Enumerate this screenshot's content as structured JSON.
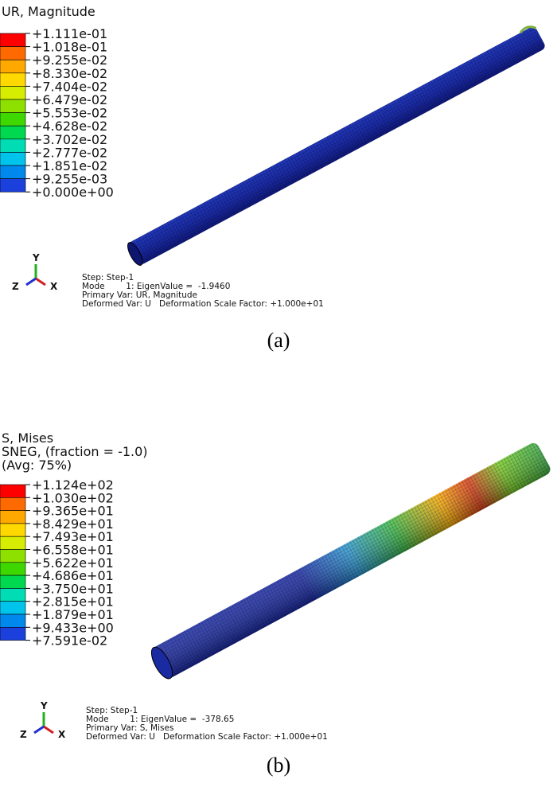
{
  "panels": [
    {
      "legend": {
        "title_lines": [
          "UR, Magnitude"
        ],
        "labels": [
          "+1.111e-01",
          "+1.018e-01",
          "+9.255e-02",
          "+8.330e-02",
          "+7.404e-02",
          "+6.479e-02",
          "+5.553e-02",
          "+4.628e-02",
          "+3.702e-02",
          "+2.777e-02",
          "+1.851e-02",
          "+9.255e-03",
          "+0.000e+00"
        ],
        "colors": [
          "#ff0000",
          "#ff6a00",
          "#ffa800",
          "#ffd800",
          "#d6ec00",
          "#8ee000",
          "#3ed800",
          "#00d850",
          "#00dcb4",
          "#00c4ec",
          "#0088ec",
          "#1c40dc"
        ]
      },
      "triad": {
        "y": "Y",
        "x": "X",
        "z": "Z"
      },
      "info": [
        "Step: Step-1",
        "Mode        1: EigenValue =  -1.9460",
        "Primary Var: UR, Magnitude",
        "Deformed Var: U   Deformation Scale Factor: +1.000e+01"
      ],
      "caption": "(a)"
    },
    {
      "legend": {
        "title_lines": [
          "S, Mises",
          "SNEG, (fraction = -1.0)",
          "(Avg: 75%)"
        ],
        "labels": [
          "+1.124e+02",
          "+1.030e+02",
          "+9.365e+01",
          "+8.429e+01",
          "+7.493e+01",
          "+6.558e+01",
          "+5.622e+01",
          "+4.686e+01",
          "+3.750e+01",
          "+2.815e+01",
          "+1.879e+01",
          "+9.433e+00",
          "+7.591e-02"
        ],
        "colors": [
          "#ff0000",
          "#ff6a00",
          "#ffa800",
          "#ffd800",
          "#d6ec00",
          "#8ee000",
          "#3ed800",
          "#00d850",
          "#00dcb4",
          "#00c4ec",
          "#0088ec",
          "#1c40dc"
        ]
      },
      "triad": {
        "y": "Y",
        "x": "X",
        "z": "Z"
      },
      "info": [
        "Step: Step-1",
        "Mode        1: EigenValue =  -378.65",
        "Primary Var: S, Mises",
        "Deformed Var: U   Deformation Scale Factor: +1.000e+01"
      ],
      "caption": "(b)"
    }
  ]
}
